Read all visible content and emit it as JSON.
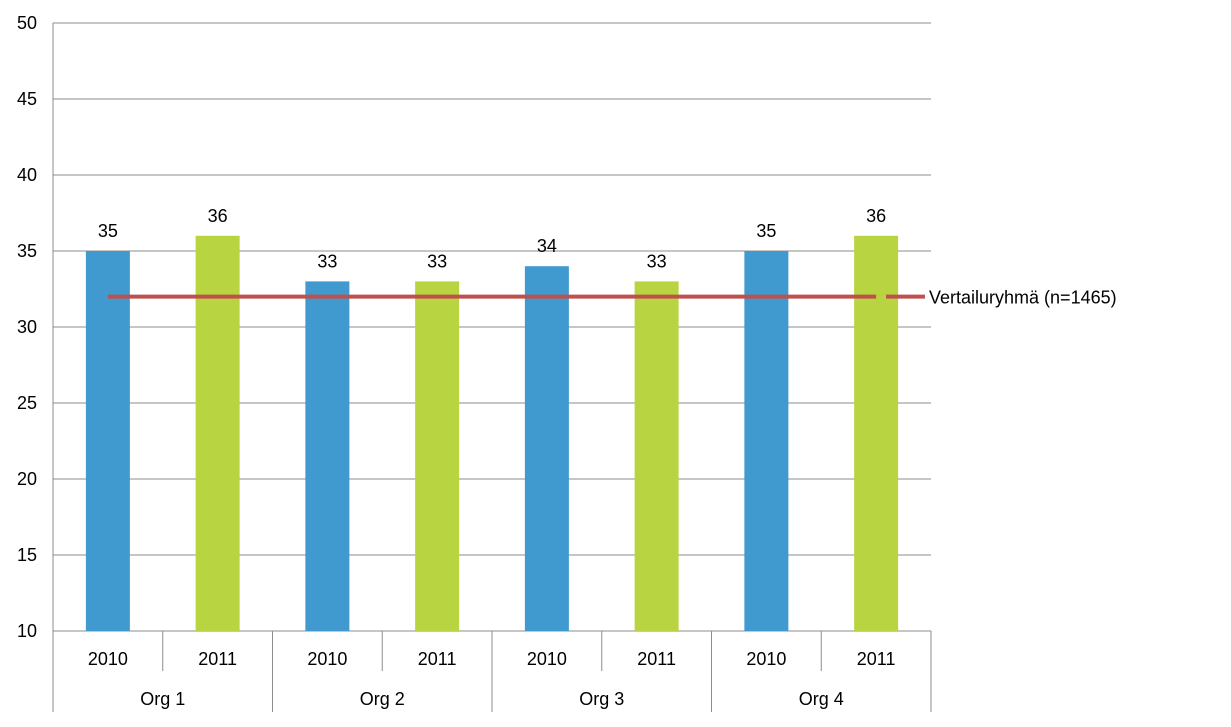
{
  "chart_data": {
    "type": "bar",
    "groups": [
      {
        "label": "Org 1",
        "categories": [
          "2010",
          "2011"
        ]
      },
      {
        "label": "Org 2",
        "categories": [
          "2010",
          "2011"
        ]
      },
      {
        "label": "Org 3",
        "categories": [
          "2010",
          "2011"
        ]
      },
      {
        "label": "Org 4",
        "categories": [
          "2010",
          "2011"
        ]
      }
    ],
    "categories": [
      "2010",
      "2011",
      "2010",
      "2011",
      "2010",
      "2011",
      "2010",
      "2011"
    ],
    "values": [
      35,
      36,
      33,
      33,
      34,
      33,
      35,
      36
    ],
    "data_labels": [
      "35",
      "36",
      "33",
      "33",
      "34",
      "33",
      "35",
      "36"
    ],
    "bar_colors": {
      "2010": "#4099CF",
      "2011": "#B8D441"
    },
    "reference_line": {
      "name": "Vertailuryhmä (n=1465)",
      "value": 32,
      "color": "#C0504D"
    },
    "ylim": [
      10,
      50
    ],
    "yticks": [
      "10",
      "15",
      "20",
      "25",
      "30",
      "35",
      "40",
      "45",
      "50"
    ],
    "grid": true,
    "title": "",
    "xlabel": "",
    "ylabel": ""
  }
}
